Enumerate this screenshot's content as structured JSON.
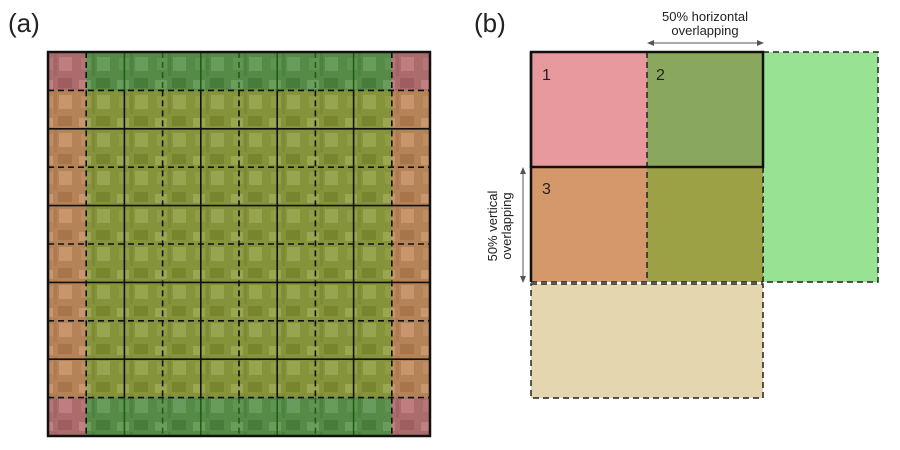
{
  "panel_a": {
    "label": "(a)",
    "grid": {
      "rows": 10,
      "cols": 10
    },
    "colors": {
      "corner": "#c85a6a",
      "edge_vertical": "#d9804a",
      "edge_horizontal": "#3e8a2e",
      "interior": "#8a9a1c",
      "photo_base": "#7a8a6a",
      "grid_line": "#111111",
      "green_line": "#1f5f14"
    }
  },
  "panel_b": {
    "label": "(b)",
    "tiles": [
      {
        "number": "1",
        "color": "#e8999e"
      },
      {
        "number": "2",
        "color": "#8aa75e"
      },
      {
        "number": "3",
        "color": "#d4986a"
      },
      {
        "number": "",
        "color": "#9ca145"
      }
    ],
    "extra_colors": {
      "right_tile": "#98e294",
      "bottom_tile": "#e4d6ae"
    },
    "horizontal_annotation": {
      "line1": "50% horizontal",
      "line2": "overlapping"
    },
    "vertical_annotation": {
      "line1": "50% vertical",
      "line2": "overlapping"
    }
  }
}
